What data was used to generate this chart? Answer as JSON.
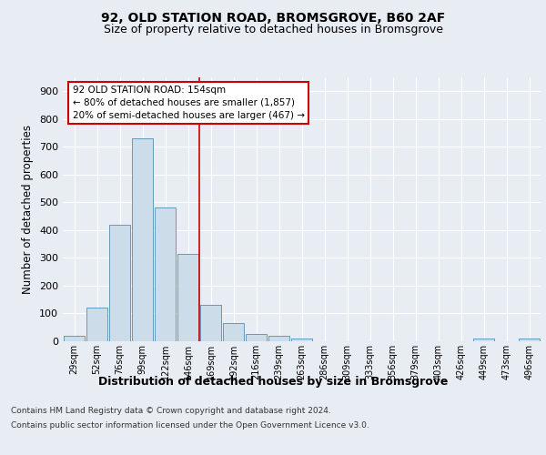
{
  "title": "92, OLD STATION ROAD, BROMSGROVE, B60 2AF",
  "subtitle": "Size of property relative to detached houses in Bromsgrove",
  "xlabel": "Distribution of detached houses by size in Bromsgrove",
  "ylabel": "Number of detached properties",
  "bar_labels": [
    "29sqm",
    "52sqm",
    "76sqm",
    "99sqm",
    "122sqm",
    "146sqm",
    "169sqm",
    "192sqm",
    "216sqm",
    "239sqm",
    "263sqm",
    "286sqm",
    "309sqm",
    "333sqm",
    "356sqm",
    "379sqm",
    "403sqm",
    "426sqm",
    "449sqm",
    "473sqm",
    "496sqm"
  ],
  "bar_values": [
    20,
    120,
    420,
    730,
    480,
    315,
    130,
    65,
    25,
    20,
    10,
    0,
    0,
    0,
    0,
    0,
    0,
    0,
    10,
    0,
    10
  ],
  "bar_color": "#ccdce8",
  "bar_edge_color": "#6699bb",
  "background_color": "#e8edf4",
  "plot_background": "#e8edf4",
  "vline_x": 5.5,
  "vline_color": "#cc0000",
  "annotation_text": "92 OLD STATION ROAD: 154sqm\n← 80% of detached houses are smaller (1,857)\n20% of semi-detached houses are larger (467) →",
  "annotation_box_facecolor": "#ffffff",
  "annotation_box_edge": "#cc0000",
  "ylim": [
    0,
    950
  ],
  "yticks": [
    0,
    100,
    200,
    300,
    400,
    500,
    600,
    700,
    800,
    900
  ],
  "footer_line1": "Contains HM Land Registry data © Crown copyright and database right 2024.",
  "footer_line2": "Contains public sector information licensed under the Open Government Licence v3.0.",
  "title_fontsize": 10,
  "subtitle_fontsize": 9,
  "ylabel_fontsize": 8.5,
  "xlabel_fontsize": 9
}
